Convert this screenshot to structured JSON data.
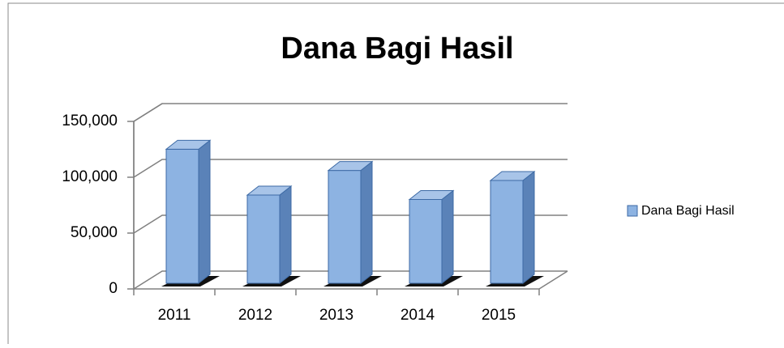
{
  "chart_data": {
    "type": "bar",
    "title": "Dana Bagi Hasil",
    "categories": [
      "2011",
      "2012",
      "2013",
      "2014",
      "2015"
    ],
    "series": [
      {
        "name": "Dana Bagi Hasil",
        "color": "#8db3e2",
        "values": [
          120000,
          79000,
          101000,
          75000,
          92000
        ]
      }
    ],
    "ylim": [
      0,
      150000
    ],
    "yticks": [
      0,
      {
        "value": 50000,
        "label": "50,000"
      },
      {
        "value": 100000,
        "label": "100,000"
      },
      {
        "value": 150000,
        "label": "150,000"
      }
    ],
    "grid": true,
    "legend": "right"
  }
}
